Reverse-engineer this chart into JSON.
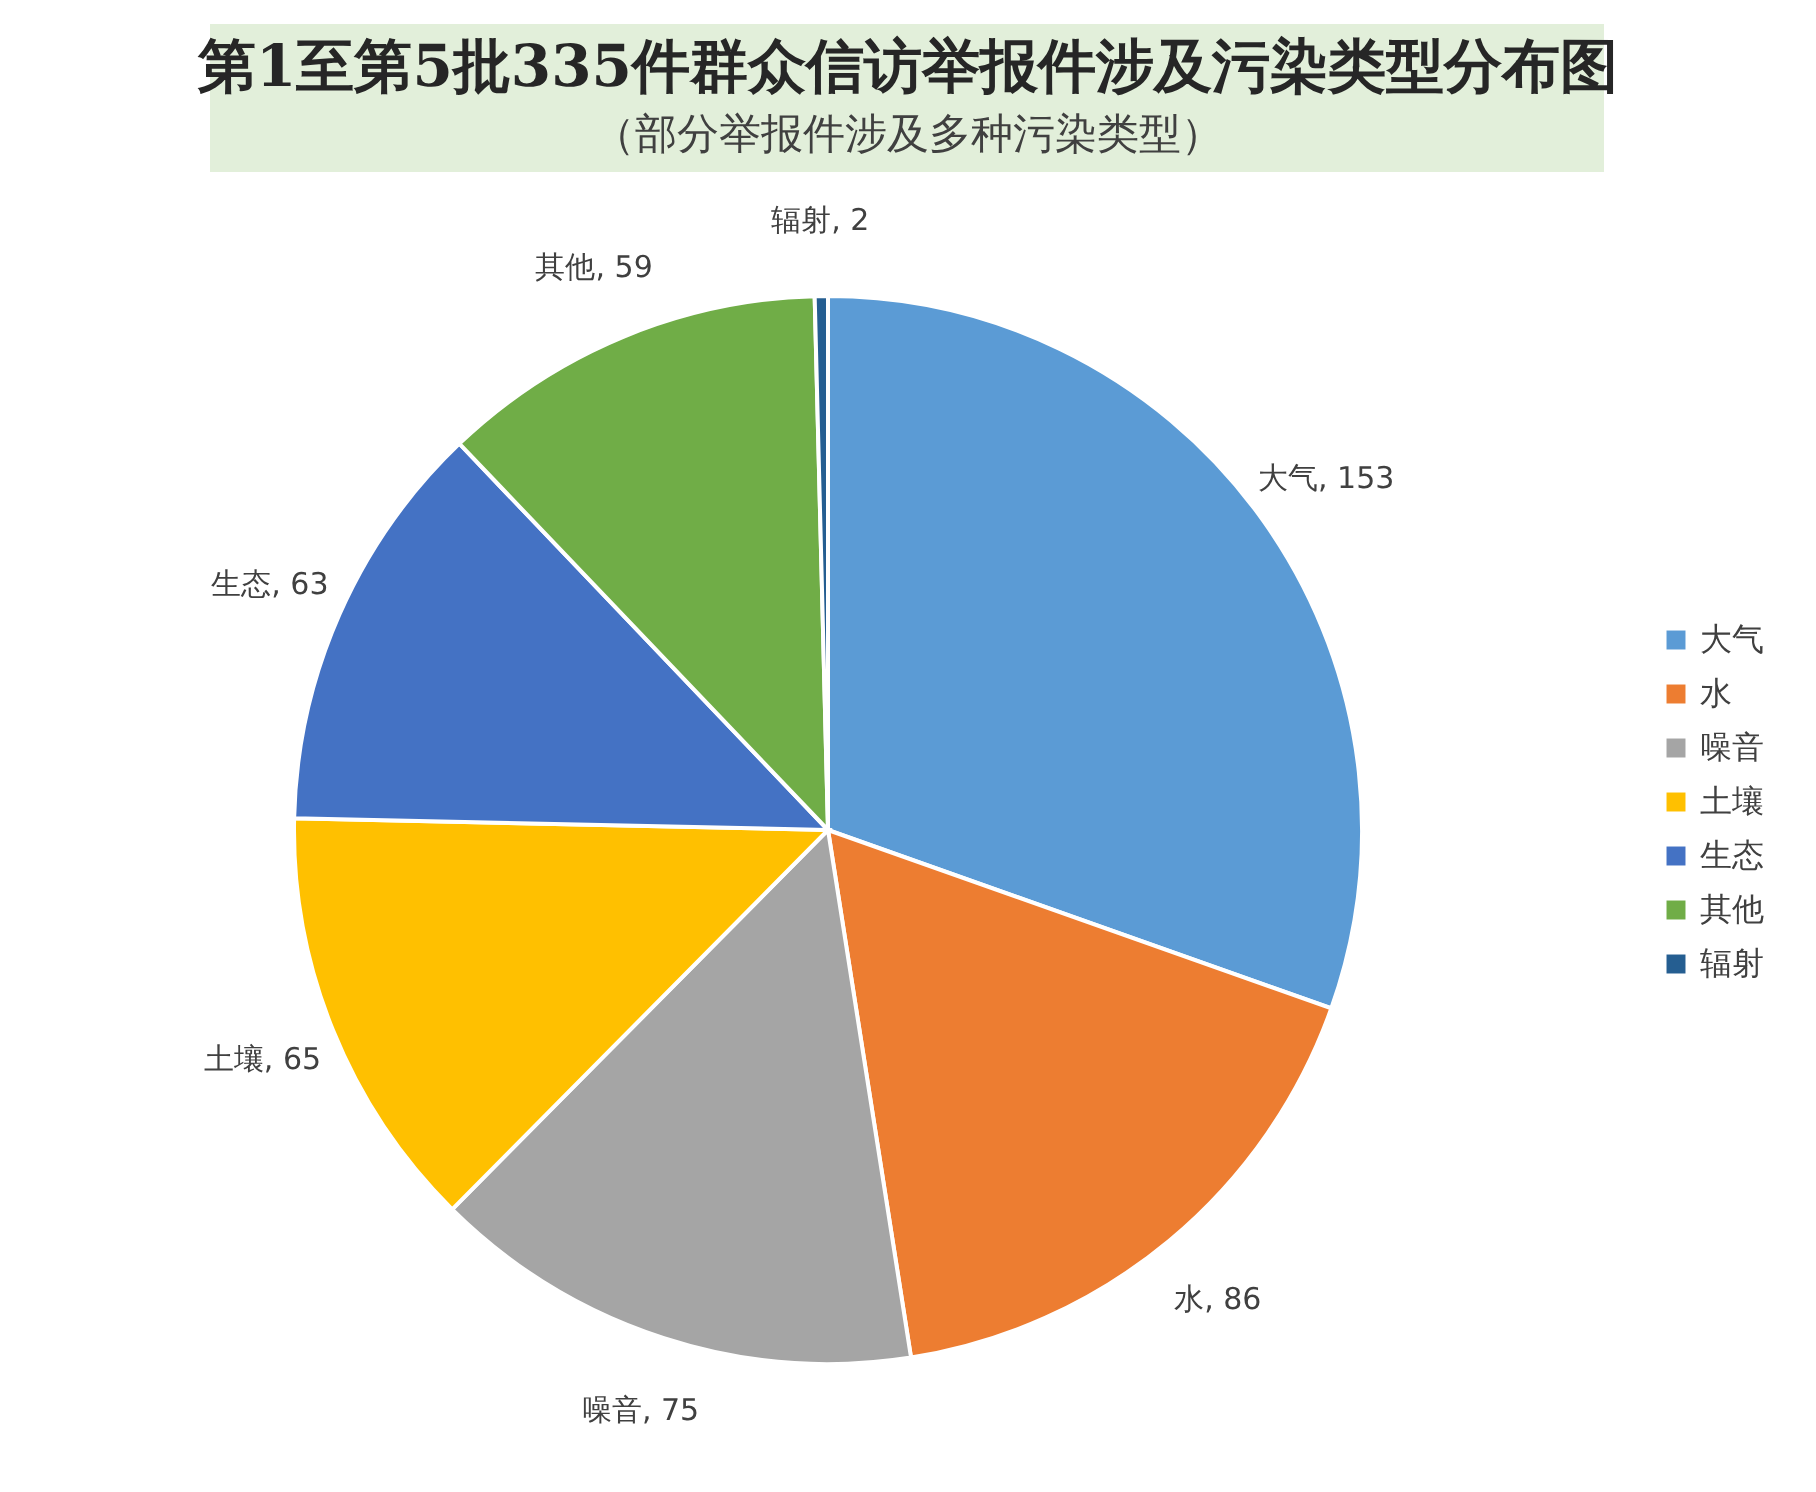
{
  "chart_data": {
    "type": "pie",
    "title": "第1至第5批335件群众信访举报件涉及污染类型分布图",
    "subtitle": "（部分举报件涉及多种污染类型）",
    "categories": [
      "大气",
      "水",
      "噪音",
      "土壤",
      "生态",
      "其他",
      "辐射"
    ],
    "values": [
      153,
      86,
      75,
      65,
      63,
      59,
      2
    ],
    "colors": [
      "#5b9bd5",
      "#ed7d31",
      "#a5a5a5",
      "#ffc000",
      "#4472c4",
      "#70ad47",
      "#255e91"
    ],
    "value_labels": [
      "大气, 153",
      "水, 86",
      "噪音, 75",
      "土壤, 65",
      "生态, 63",
      "其他, 59",
      "辐射, 2"
    ],
    "legend": "right"
  }
}
